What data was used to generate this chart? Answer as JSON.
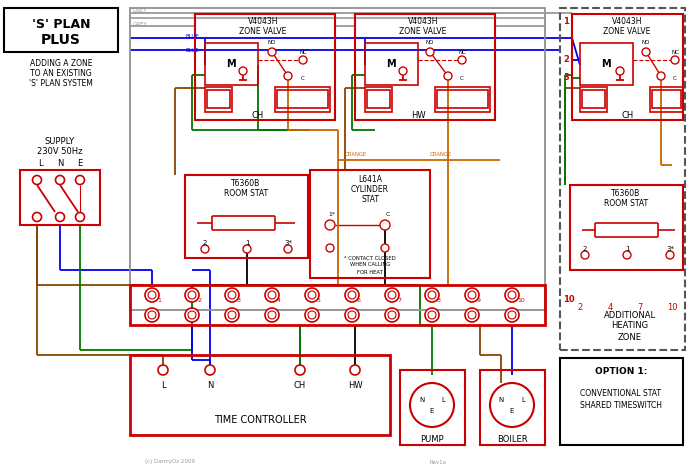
{
  "bg_color": "#ffffff",
  "colors": {
    "red": "#cc0000",
    "blue": "#0000ee",
    "green": "#007700",
    "orange": "#cc6600",
    "brown": "#884400",
    "grey": "#999999",
    "black": "#000000",
    "dkgrey": "#555555"
  },
  "title1": "'S' PLAN",
  "title2": "PLUS",
  "subtitle": "ADDING A ZONE\nTO AN EXISTING\n'S' PLAN SYSTEM",
  "supply": "SUPPLY\n230V 50Hz",
  "zone_valve": "V4043H\nZONE VALVE",
  "ch": "CH",
  "hw": "HW",
  "room_stat": "T6360B\nROOM STAT",
  "cyl_stat": "L641A\nCYLINDER\nSTAT",
  "contact_note": "* CONTACT CLOSED\nWHEN CALLING\nFOR HEAT",
  "time_ctrl": "TIME CONTROLLER",
  "pump": "PUMP",
  "boiler": "BOILER",
  "add_zone": "ADDITIONAL\nHEATING\nZONE",
  "option": "OPTION 1:\n\nCONVENTIONAL STAT\nSHARED TIMESWITCH",
  "copyright": "(c) DannyOz 2009",
  "rev": "Rev1a"
}
